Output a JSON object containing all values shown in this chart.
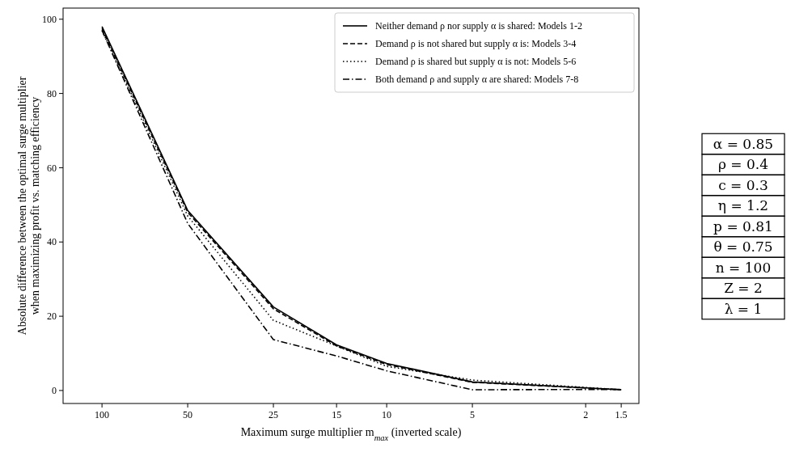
{
  "chart_data": {
    "type": "line",
    "xlabel": "Maximum surge multiplier m$_{max}$ (inverted scale)",
    "ylabel": "Absolute difference between the optimal surge multiplier\nwhen maximizing profit vs. matching efficiency",
    "x": [
      100,
      50,
      25,
      15,
      10,
      5,
      1.5
    ],
    "series": [
      {
        "name": "Neither demand ρ nor supply α is shared: Models 1-2",
        "color": "#000000",
        "line_style": "solid",
        "values": [
          98,
          48.5,
          22.5,
          12.3,
          7.3,
          2.3,
          0.2
        ]
      },
      {
        "name": "Demand ρ is not shared but supply α is: Models 3-4",
        "color": "#000000",
        "line_style": "dashed",
        "values": [
          97.5,
          48,
          22,
          12,
          7,
          2.2,
          0.2
        ]
      },
      {
        "name": "Demand ρ is shared but supply α is not: Models 5-6",
        "color": "#000000",
        "line_style": "dotted",
        "values": [
          97,
          47,
          18.9,
          12,
          6.5,
          2.8,
          0.2
        ]
      },
      {
        "name": "Both demand ρ and supply α are shared: Models 7-8",
        "color": "#000000",
        "line_style": "dashdot",
        "values": [
          97,
          45,
          13.7,
          9.3,
          5.3,
          0.2,
          0.3
        ]
      }
    ],
    "log": "x",
    "xlim": [
      137,
      1.3
    ],
    "xticks": [
      100,
      50,
      25,
      15,
      10,
      5,
      2,
      1.5
    ],
    "ylim": [
      -3.5,
      103
    ],
    "yticks": [
      0,
      20,
      40,
      60,
      80,
      100
    ],
    "grid": false,
    "legend": "top right",
    "marker": "none",
    "annotations": [
      "α = 0.85",
      "ρ = 0.4",
      "c = 0.3",
      "η = 1.2",
      "p = 0.81",
      "θ = 0.75",
      "n = 100",
      "Z = 2",
      "λ = 1"
    ]
  }
}
